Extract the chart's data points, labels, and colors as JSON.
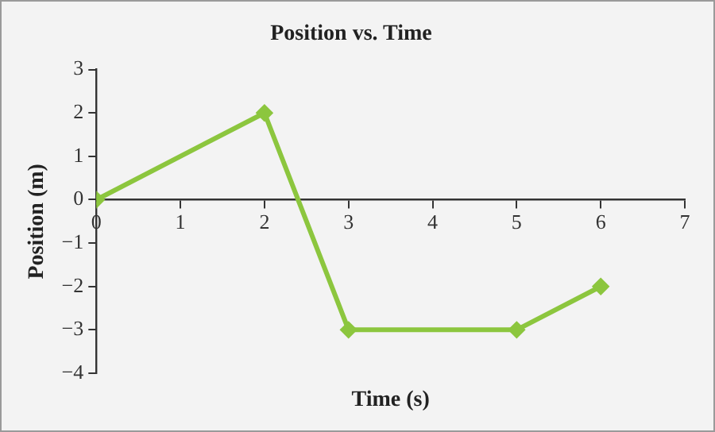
{
  "chart_data": {
    "type": "line",
    "title": "Position vs. Time",
    "xlabel": "Time (s)",
    "ylabel": "Position (m)",
    "x": [
      0,
      2,
      3,
      5,
      6
    ],
    "series": [
      {
        "color": "#8cc63e",
        "values": [
          0,
          2,
          -3,
          -3,
          -2
        ]
      }
    ],
    "xlim": [
      0,
      7
    ],
    "xticks": [
      0,
      1,
      2,
      3,
      4,
      5,
      6,
      7
    ],
    "ylim": [
      -4,
      3
    ],
    "yticks": [
      -4,
      -3,
      -2,
      -1,
      0,
      1,
      2,
      3
    ],
    "grid": false,
    "legend": false,
    "marker": "diamond",
    "line_style": "solid"
  }
}
